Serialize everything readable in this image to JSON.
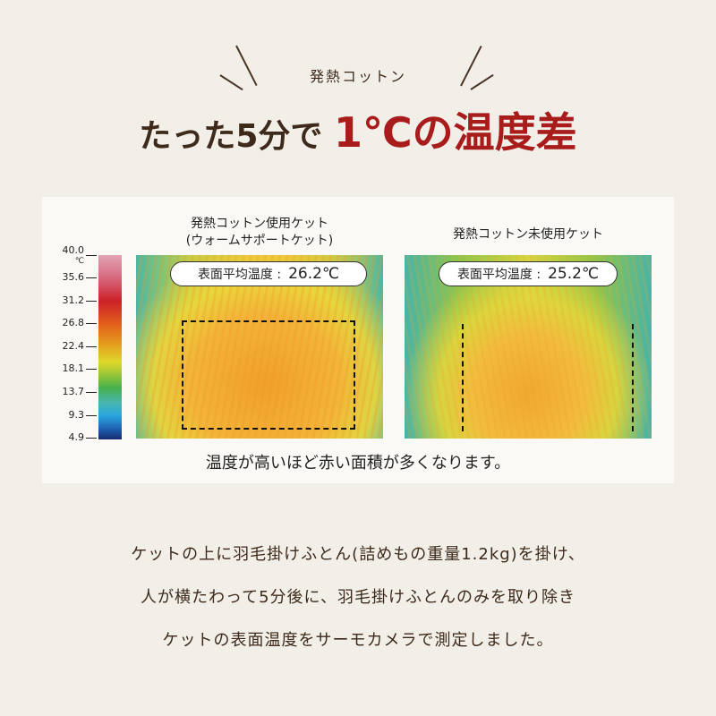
{
  "header": {
    "subtitle": "発熱コットン",
    "title_prefix": "たった5分で",
    "title_highlight": "1℃の温度差"
  },
  "colors": {
    "accent_red": "#a81c1c",
    "text_brown": "#3d2a1a",
    "background": "#f2eee8"
  },
  "scale": {
    "unit": "℃",
    "ticks": [
      "40.0",
      "35.6",
      "31.2",
      "26.8",
      "22.4",
      "18.1",
      "13.7",
      "9.3",
      "4.9"
    ]
  },
  "comparison": [
    {
      "label_line1": "発熱コットン使用ケット",
      "label_line2": "(ウォームサポートケット)",
      "avg_label": "表面平均温度 :",
      "avg_value": "26.2℃"
    },
    {
      "label_line1": "発熱コットン未使用ケット",
      "avg_label": "表面平均温度 :",
      "avg_value": "25.2℃"
    }
  ],
  "caption": "温度が高いほど赤い面積が多くなります。",
  "description": [
    "ケットの上に羽毛掛けふとん(詰めもの重量1.2kg)を掛け、",
    "人が横たわって5分後に、羽毛掛けふとんのみを取り除き",
    "ケットの表面温度をサーモカメラで測定しました。"
  ]
}
